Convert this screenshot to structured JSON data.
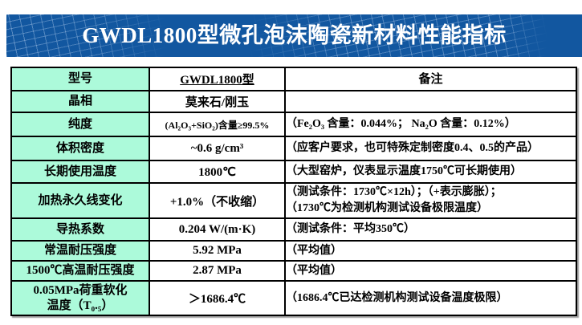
{
  "header": {
    "title": "GWDL1800型微孔泡沫陶瓷新材料性能指标",
    "bar_color": "#1257A0"
  },
  "table": {
    "colors": {
      "label_bg": "#ACFADA",
      "border": "#000000"
    },
    "header": {
      "col1": "型号",
      "col2": "GWDL1800型",
      "col3": "备注"
    },
    "rows": [
      {
        "label": "晶相",
        "value": "莫来石/刚玉",
        "remark": ""
      },
      {
        "label": "纯度",
        "value": "(Al₂O₃+SiO₂)含量≥99.5%",
        "remark": "（Fe₂O₃ 含量：0.044%；  Na₂O 含量：0.12%）"
      },
      {
        "label": "体积密度",
        "value": "~0.6 g/cm³",
        "remark": "（应客户要求，也可特殊定制密度0.4、0.5的产品）"
      },
      {
        "label": "长期使用温度",
        "value": "1800℃",
        "remark": "（大型窑炉，仪表显示温度1750℃可长期使用）"
      },
      {
        "label": "加热永久线变化",
        "value": "+1.0%（不收缩）",
        "remark": "（测试条件：1730℃×12h）；（+表示膨胀）；\n（1730℃为检测机构测试设备极限温度）"
      },
      {
        "label": "导热系数",
        "value": "0.204 W/(m·K)",
        "remark": "（测试条件：平均350℃）"
      },
      {
        "label": "常温耐压强度",
        "value": "5.92 MPa",
        "remark": "（平均值）"
      },
      {
        "label": "1500℃高温耐压强度",
        "value": "2.87 MPa",
        "remark": "（平均值）"
      },
      {
        "label": "0.05MPa荷重软化\n温度（T₀.₅）",
        "value": "＞1686.4℃",
        "remark": "（1686.4℃已达检测机构测试设备温度极限）"
      }
    ]
  }
}
